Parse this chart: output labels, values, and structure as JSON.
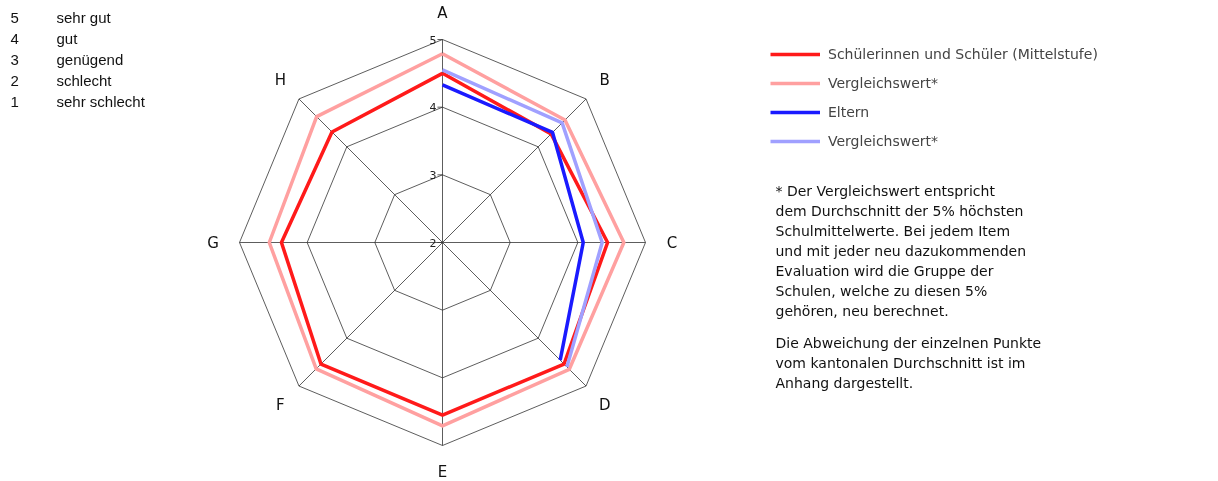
{
  "chart_data": {
    "type": "radar",
    "categories": [
      "A",
      "B",
      "C",
      "D",
      "E",
      "F",
      "G",
      "H"
    ],
    "ylim": [
      2,
      5
    ],
    "yticks": [
      2,
      3,
      4,
      5
    ],
    "grid": true,
    "legend": "right",
    "line_style": "solid",
    "marker": "none",
    "series": [
      {
        "name": "Schülerinnen und Schüler (Mittelstufe)",
        "color": "#ff1a1a",
        "values": [
          4.5,
          4.27,
          4.44,
          4.54,
          4.55,
          4.54,
          4.38,
          4.31
        ]
      },
      {
        "name": "Vergleichswert*",
        "color": "#ffa0a0",
        "values": [
          4.79,
          4.56,
          4.68,
          4.65,
          4.71,
          4.64,
          4.56,
          4.63
        ]
      },
      {
        "name": "Eltern",
        "color": "#1a1aff",
        "values": [
          4.33,
          4.3,
          4.08,
          4.46,
          null,
          null,
          null,
          null
        ]
      },
      {
        "name": "Vergleichswert*",
        "color": "#a0a0ff",
        "values": [
          4.55,
          4.5,
          4.36,
          4.6,
          null,
          null,
          null,
          null
        ]
      }
    ],
    "annotations": [
      "5 sehr gut",
      "4 gut",
      "3 genügend",
      "2 schlecht",
      "1 sehr schlecht",
      "* Der Vergleichswert entspricht\ndem Durchschnitt der 5% höchsten\nSchulmittelwerte. Bei jedem Item\nund mit jeder neu dazukommenden\nEvaluation wird die Gruppe der\nSchulen, welche zu diesen 5%\ngehören, neu berechnet.",
      "Die Abweichung der einzelnen Punkte\nvom kantonalen Durchschnitt ist im\nAnhang dargestellt."
    ]
  }
}
